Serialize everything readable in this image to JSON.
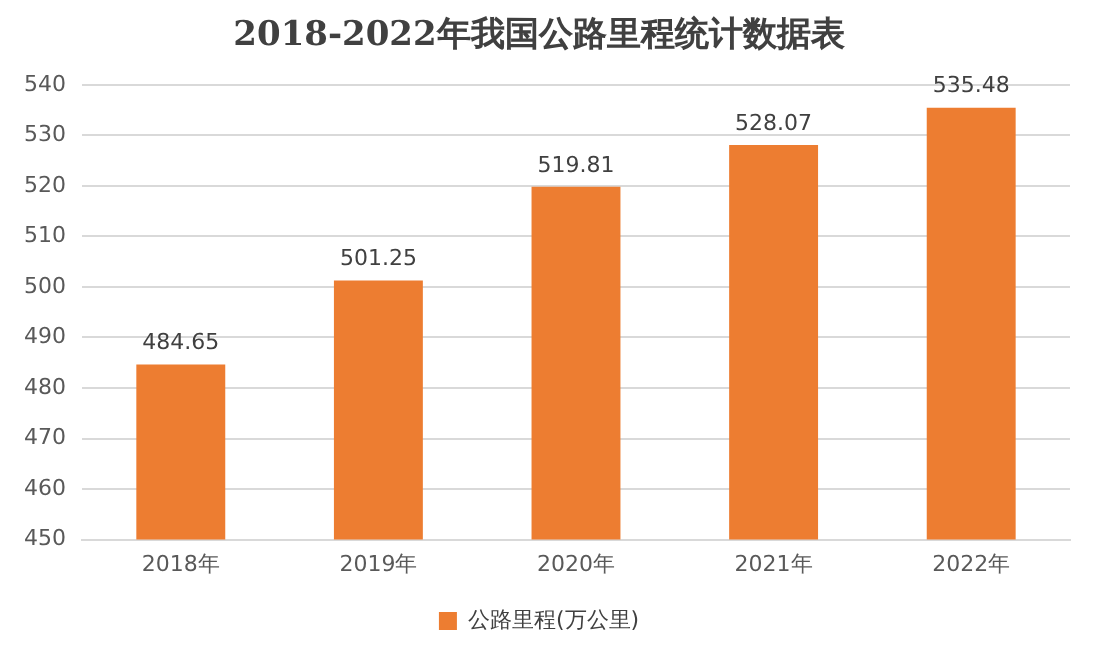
{
  "chart_data": {
    "type": "bar",
    "title": "2018-2022年我国公路里程统计数据表",
    "categories": [
      "2018年",
      "2019年",
      "2020年",
      "2021年",
      "2022年"
    ],
    "series": [
      {
        "name": "公路里程(万公里)",
        "color": "#ed7d31",
        "values": [
          484.65,
          501.25,
          519.81,
          528.07,
          535.48
        ]
      }
    ],
    "ylim": [
      450,
      540
    ],
    "yticks": [
      450,
      460,
      470,
      480,
      490,
      500,
      510,
      520,
      530,
      540
    ],
    "grid": "y",
    "legend": "bottom",
    "data_labels": true
  }
}
